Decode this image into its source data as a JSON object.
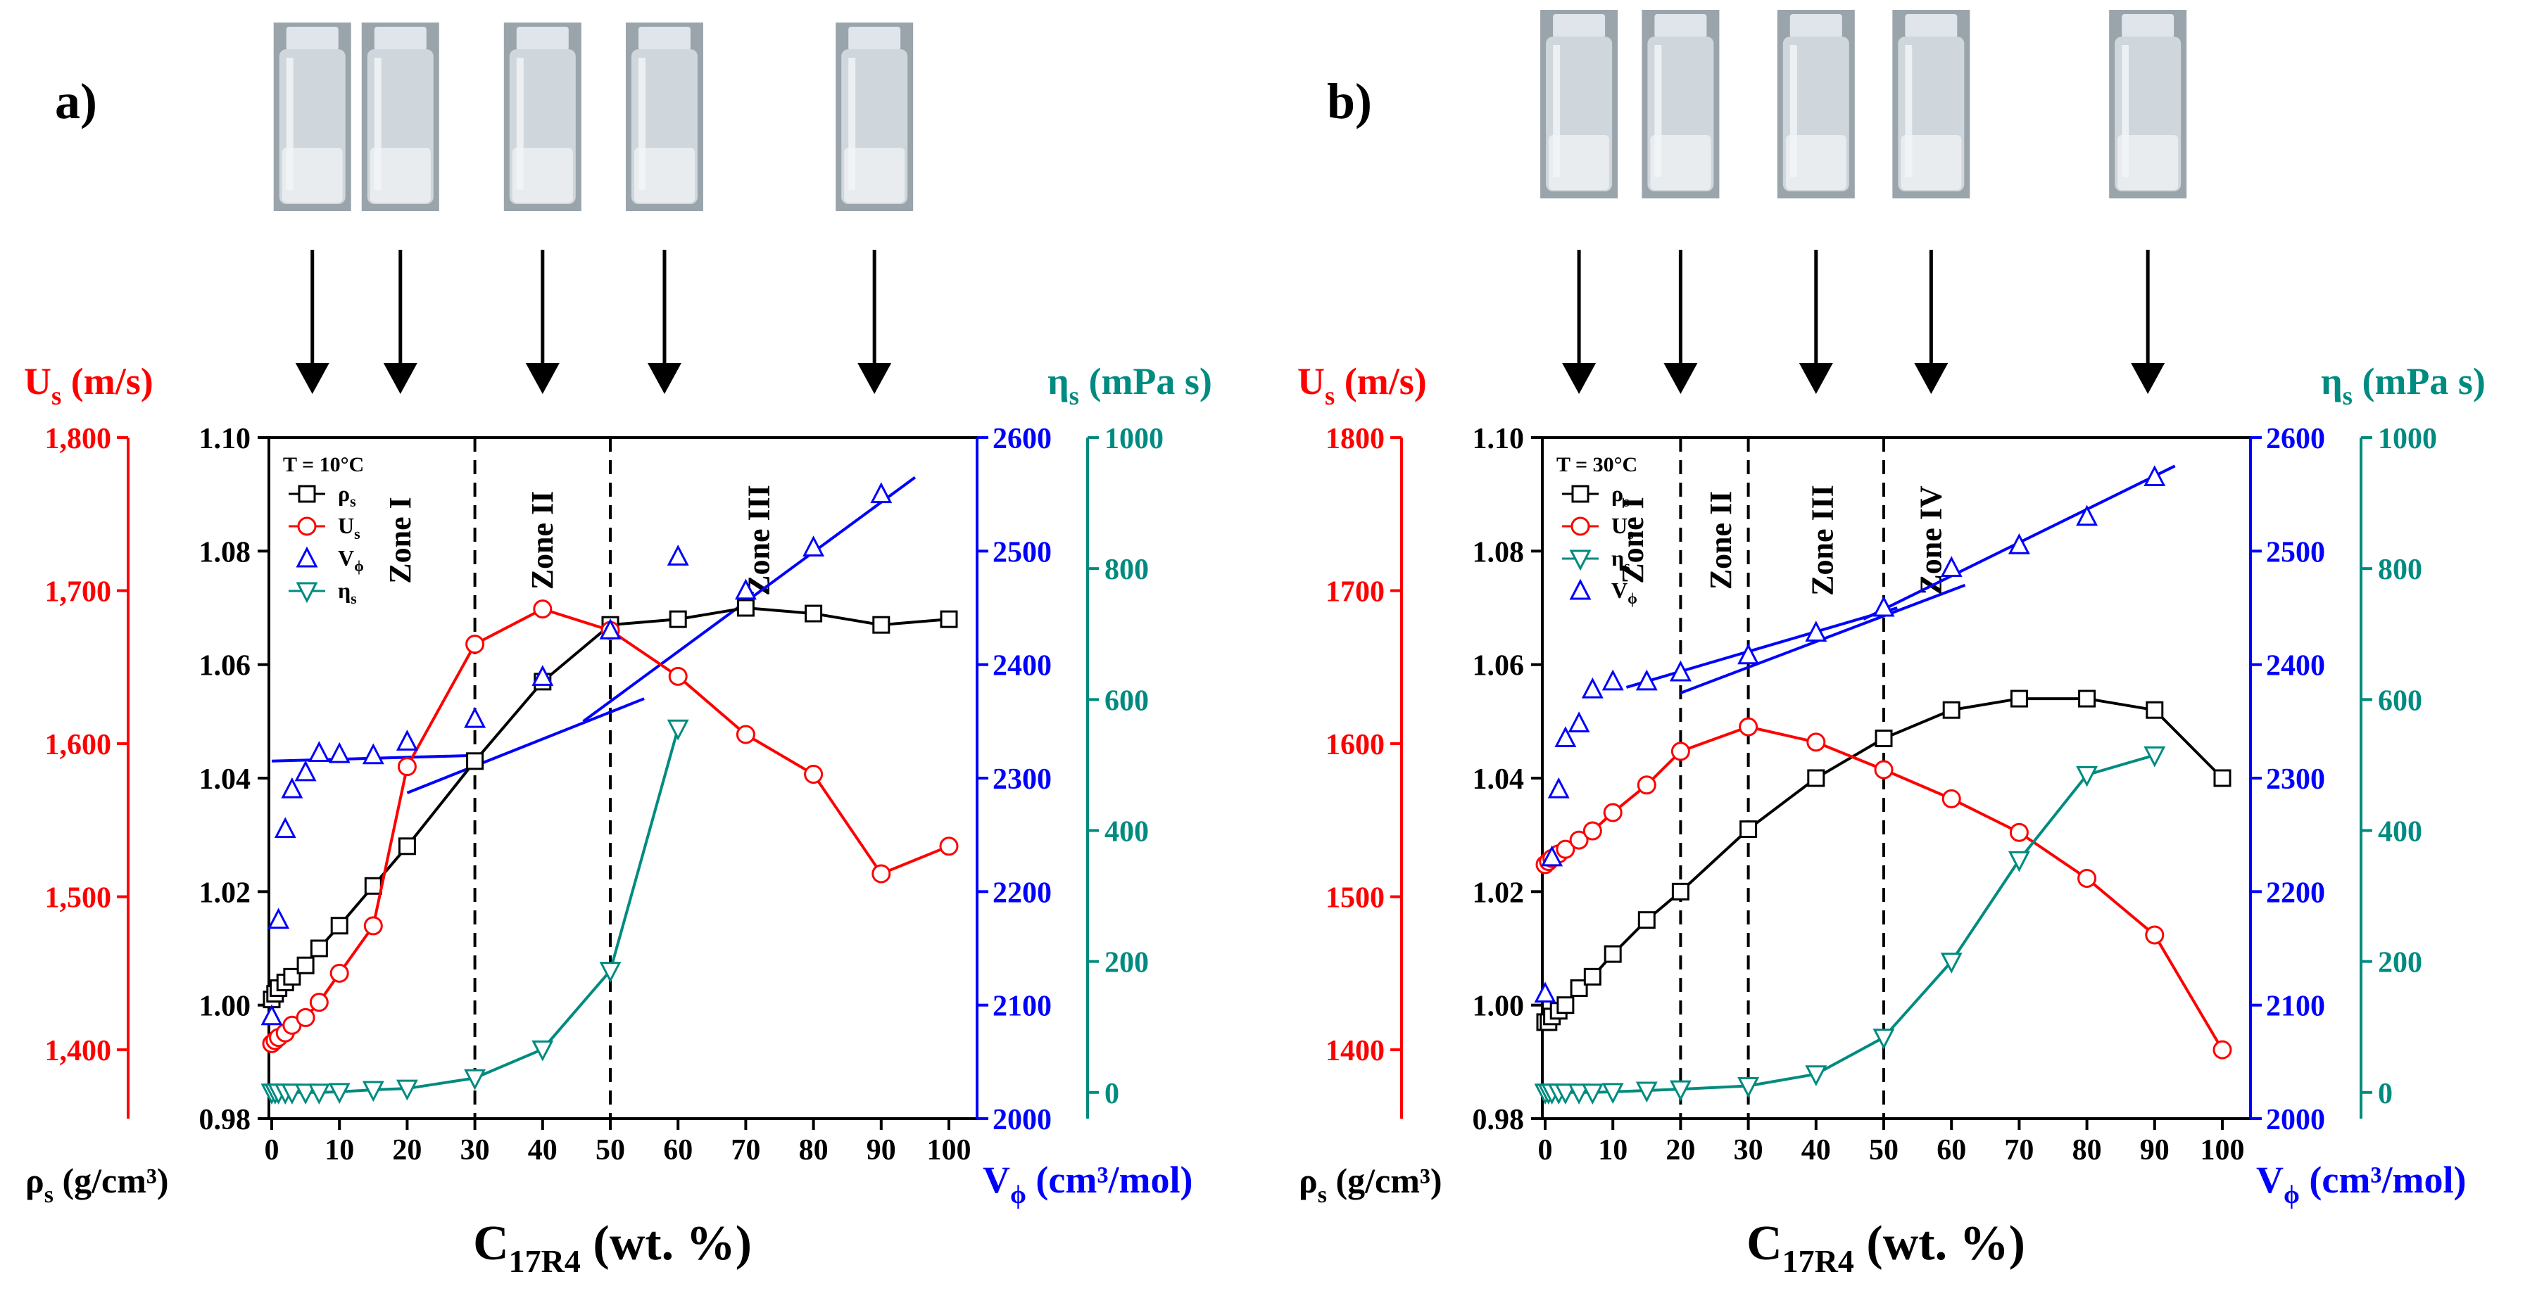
{
  "colors": {
    "rho": "#000000",
    "us": "#ff0000",
    "v": "#0000ff",
    "eta": "#008b80",
    "fit": "#0000ff",
    "vial_glass": "#cfd6dc",
    "vial_liquid": "#e8ecef"
  },
  "chart_data": [
    {
      "panel_label": "a)",
      "type": "line",
      "temperature_label": "T = 10°C",
      "xlabel_main": "C",
      "xlabel_sub": "17R4",
      "xlabel_suffix": " (wt. %)",
      "x_ticks": [
        "0",
        "10",
        "20",
        "30",
        "40",
        "50",
        "60",
        "70",
        "80",
        "90",
        "100"
      ],
      "xlim": [
        0,
        100
      ],
      "axes": {
        "us": {
          "label_main": "U",
          "label_sub": "s",
          "label_suffix": " (m/s)",
          "ticks": [
            "1,400",
            "1,500",
            "1,600",
            "1,700",
            "1,800"
          ],
          "tick_values": [
            1400,
            1500,
            1600,
            1700,
            1800
          ],
          "range": [
            1355,
            1800
          ]
        },
        "rho": {
          "label_main": "ρ",
          "label_sub": "s",
          "label_suffix": " (g/cm³)",
          "ticks": [
            "0.98",
            "1.00",
            "1.02",
            "1.04",
            "1.06",
            "1.08",
            "1.10"
          ],
          "tick_values": [
            0.98,
            1.0,
            1.02,
            1.04,
            1.06,
            1.08,
            1.1
          ],
          "range": [
            0.98,
            1.1
          ]
        },
        "v": {
          "label_main": "V",
          "label_sub": "ϕ",
          "label_suffix": " (cm³/mol)",
          "ticks": [
            "2000",
            "2100",
            "2200",
            "2300",
            "2400",
            "2500",
            "2600"
          ],
          "tick_values": [
            2000,
            2100,
            2200,
            2300,
            2400,
            2500,
            2600
          ],
          "range": [
            2000,
            2600
          ]
        },
        "eta": {
          "label_main": "η",
          "label_sub": "s",
          "label_suffix": " (mPa s)",
          "ticks": [
            "0",
            "200",
            "400",
            "600",
            "800",
            "1000"
          ],
          "tick_values": [
            0,
            200,
            400,
            600,
            800,
            1000
          ],
          "range": [
            -40,
            1000
          ]
        }
      },
      "legend": [
        {
          "key": "rho",
          "main": "ρ",
          "sub": "s"
        },
        {
          "key": "us",
          "main": "U",
          "sub": "s"
        },
        {
          "key": "v",
          "main": "V",
          "sub": "ϕ"
        },
        {
          "key": "eta",
          "main": "η",
          "sub": "s"
        }
      ],
      "zones": [
        {
          "label": "Zone I",
          "x": 19
        },
        {
          "label": "Zone II",
          "x": 40
        },
        {
          "label": "Zone III",
          "x": 72
        }
      ],
      "dividers": [
        30,
        50
      ],
      "series": [
        {
          "name": "rho",
          "marker": "square",
          "line": true,
          "x": [
            0,
            0.5,
            1,
            2,
            3,
            5,
            7,
            10,
            15,
            20,
            30,
            40,
            50,
            60,
            70,
            80,
            90,
            100
          ],
          "y": [
            1.001,
            1.002,
            1.003,
            1.004,
            1.005,
            1.007,
            1.01,
            1.014,
            1.021,
            1.028,
            1.043,
            1.057,
            1.067,
            1.068,
            1.07,
            1.069,
            1.067,
            1.068
          ]
        },
        {
          "name": "us",
          "marker": "circle",
          "line": true,
          "x": [
            0,
            0.5,
            1,
            2,
            3,
            5,
            7,
            10,
            15,
            20,
            30,
            40,
            50,
            60,
            70,
            80,
            90,
            100
          ],
          "y": [
            1404,
            1406,
            1408,
            1411,
            1416,
            1421,
            1431,
            1450,
            1481,
            1585,
            1665,
            1688,
            1674,
            1644,
            1606,
            1580,
            1515,
            1533
          ]
        },
        {
          "name": "v",
          "marker": "triangle-up",
          "line": false,
          "x": [
            0,
            1,
            2,
            3,
            5,
            7,
            10,
            15,
            20,
            30,
            40,
            50,
            60,
            70,
            80,
            90
          ],
          "y": [
            2090,
            2175,
            2255,
            2290,
            2305,
            2322,
            2321,
            2320,
            2332,
            2352,
            2389,
            2430,
            2495,
            2465,
            2503,
            2550
          ]
        },
        {
          "name": "eta",
          "marker": "triangle-down",
          "line": true,
          "x": [
            0,
            0.5,
            1,
            2,
            3,
            5,
            7,
            10,
            15,
            20,
            30,
            40,
            50,
            60
          ],
          "y": [
            0,
            0,
            0,
            0,
            0,
            0,
            0,
            1,
            4,
            6,
            22,
            66,
            186,
            556
          ]
        }
      ],
      "fit_lines": [
        {
          "x": [
            0,
            30
          ],
          "y": [
            2315,
            2320
          ]
        },
        {
          "x": [
            20,
            55
          ],
          "y": [
            2287,
            2370
          ]
        },
        {
          "x": [
            46,
            95
          ],
          "y": [
            2350,
            2565
          ]
        }
      ],
      "vials": [
        {
          "x_label": "5"
        },
        {
          "x_label": "18"
        },
        {
          "x_label": "39"
        },
        {
          "x_label": "58"
        },
        {
          "x_label": "89"
        }
      ],
      "arrows_at_wt": [
        6,
        19,
        40,
        58,
        89
      ]
    },
    {
      "panel_label": "b)",
      "type": "line",
      "temperature_label": "T = 30°C",
      "xlabel_main": "C",
      "xlabel_sub": "17R4",
      "xlabel_suffix": " (wt. %)",
      "x_ticks": [
        "0",
        "10",
        "20",
        "30",
        "40",
        "50",
        "60",
        "70",
        "80",
        "90",
        "100"
      ],
      "xlim": [
        0,
        100
      ],
      "axes": {
        "us": {
          "label_main": "U",
          "label_sub": "s",
          "label_suffix": " (m/s)",
          "ticks": [
            "1400",
            "1500",
            "1600",
            "1700",
            "1800"
          ],
          "tick_values": [
            1400,
            1500,
            1600,
            1700,
            1800
          ],
          "range": [
            1355,
            1800
          ]
        },
        "rho": {
          "label_main": "ρ",
          "label_sub": "s",
          "label_suffix": " (g/cm³)",
          "ticks": [
            "0.98",
            "1.00",
            "1.02",
            "1.04",
            "1.06",
            "1.08",
            "1.10"
          ],
          "tick_values": [
            0.98,
            1.0,
            1.02,
            1.04,
            1.06,
            1.08,
            1.1
          ],
          "range": [
            0.98,
            1.1
          ]
        },
        "v": {
          "label_main": "V",
          "label_sub": "ϕ",
          "label_suffix": " (cm³/mol)",
          "ticks": [
            "2000",
            "2100",
            "2200",
            "2300",
            "2400",
            "2500",
            "2600"
          ],
          "tick_values": [
            2000,
            2100,
            2200,
            2300,
            2400,
            2500,
            2600
          ],
          "range": [
            2000,
            2600
          ]
        },
        "eta": {
          "label_main": "η",
          "label_sub": "s",
          "label_suffix": " (mPa s)",
          "ticks": [
            "0",
            "200",
            "400",
            "600",
            "800",
            "1000"
          ],
          "tick_values": [
            0,
            200,
            400,
            600,
            800,
            1000
          ],
          "range": [
            -40,
            1000
          ]
        }
      },
      "legend": [
        {
          "key": "rho",
          "main": "ρ",
          "sub": "s"
        },
        {
          "key": "us",
          "main": "U",
          "sub": "s"
        },
        {
          "key": "eta",
          "main": "η",
          "sub": "s"
        },
        {
          "key": "v",
          "main": "V",
          "sub": "ϕ"
        }
      ],
      "zones": [
        {
          "label": "Zone I",
          "x": 13
        },
        {
          "label": "Zone II",
          "x": 26
        },
        {
          "label": "Zone III",
          "x": 41
        },
        {
          "label": "Zone IV",
          "x": 57
        }
      ],
      "dividers": [
        20,
        30,
        50
      ],
      "series": [
        {
          "name": "rho",
          "marker": "square",
          "line": true,
          "x": [
            0,
            0.5,
            1,
            2,
            3,
            5,
            7,
            10,
            15,
            20,
            30,
            40,
            50,
            60,
            70,
            80,
            90,
            100
          ],
          "y": [
            0.997,
            0.997,
            0.998,
            0.999,
            1.0,
            1.003,
            1.005,
            1.009,
            1.015,
            1.02,
            1.031,
            1.04,
            1.047,
            1.052,
            1.054,
            1.054,
            1.052,
            1.04
          ]
        },
        {
          "name": "us",
          "marker": "circle",
          "line": true,
          "x": [
            0,
            0.5,
            1,
            2,
            3,
            5,
            7,
            10,
            15,
            20,
            30,
            40,
            50,
            60,
            70,
            80,
            90,
            100
          ],
          "y": [
            1521,
            1523,
            1525,
            1528,
            1531,
            1537,
            1543,
            1555,
            1573,
            1595,
            1611,
            1601,
            1583,
            1564,
            1542,
            1512,
            1475,
            1400
          ]
        },
        {
          "name": "eta",
          "marker": "triangle-down",
          "line": true,
          "x": [
            0,
            0.5,
            1,
            2,
            3,
            5,
            7,
            10,
            15,
            20,
            30,
            40,
            50,
            60,
            70,
            80,
            90
          ],
          "y": [
            0,
            0,
            0,
            0,
            0,
            0,
            0,
            1,
            3,
            5,
            10,
            28,
            84,
            200,
            355,
            485,
            515
          ]
        },
        {
          "name": "v",
          "marker": "triangle-up",
          "line": false,
          "x": [
            0,
            1,
            2,
            3,
            5,
            7,
            10,
            15,
            20,
            30,
            40,
            50,
            60,
            70,
            80,
            90
          ],
          "y": [
            2110,
            2230,
            2290,
            2335,
            2348,
            2378,
            2385,
            2385,
            2393,
            2408,
            2428,
            2450,
            2485,
            2505,
            2530,
            2565
          ]
        }
      ],
      "fit_lines": [
        {
          "x": [
            12,
            52
          ],
          "y": [
            2380,
            2450
          ]
        },
        {
          "x": [
            20,
            62
          ],
          "y": [
            2375,
            2470
          ]
        },
        {
          "x": [
            47,
            93
          ],
          "y": [
            2440,
            2575
          ]
        }
      ],
      "vials": [
        {
          "x_label": "5"
        },
        {
          "x_label": "20"
        },
        {
          "x_label": "40"
        },
        {
          "x_label": "58"
        },
        {
          "x_label": "89"
        }
      ],
      "arrows_at_wt": [
        5,
        20,
        40,
        57,
        89
      ]
    }
  ]
}
